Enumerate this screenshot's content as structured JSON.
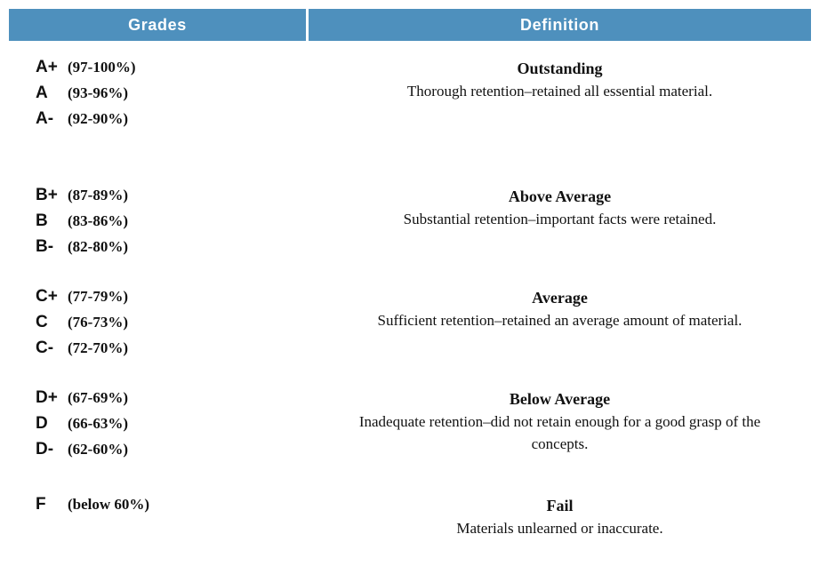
{
  "colors": {
    "header_bg": "#4e90bd",
    "header_text": "#ffffff"
  },
  "table": {
    "headers": [
      {
        "label": "Grades"
      },
      {
        "label": "Definition"
      }
    ],
    "rows": [
      {
        "grades": [
          {
            "letter": "A+",
            "range": "(97-100%)"
          },
          {
            "letter": "A",
            "range": "(93-96%)"
          },
          {
            "letter": "A-",
            "range": "(92-90%)"
          }
        ],
        "definition": {
          "title": "Outstanding",
          "text": "Thorough retention–retained all essential material."
        }
      },
      {
        "grades": [
          {
            "letter": "B+",
            "range": "(87-89%)"
          },
          {
            "letter": "B",
            "range": "(83-86%)"
          },
          {
            "letter": "B-",
            "range": "(82-80%)"
          }
        ],
        "definition": {
          "title": "Above Average",
          "text": "Substantial retention–important facts were retained."
        }
      },
      {
        "grades": [
          {
            "letter": "C+",
            "range": "(77-79%)"
          },
          {
            "letter": "C",
            "range": "(76-73%)"
          },
          {
            "letter": "C-",
            "range": "(72-70%)"
          }
        ],
        "definition": {
          "title": "Average",
          "text": "Sufficient retention–retained an average amount of material."
        }
      },
      {
        "grades": [
          {
            "letter": "D+",
            "range": "(67-69%)"
          },
          {
            "letter": "D",
            "range": "(66-63%)"
          },
          {
            "letter": "D-",
            "range": "(62-60%)"
          }
        ],
        "definition": {
          "title": "Below Average",
          "text": "Inadequate retention–did not retain enough for a good grasp of the concepts."
        }
      },
      {
        "grades": [
          {
            "letter": "F",
            "range": "(below 60%)"
          }
        ],
        "definition": {
          "title": "Fail",
          "text": "Materials unlearned or inaccurate."
        }
      }
    ]
  }
}
